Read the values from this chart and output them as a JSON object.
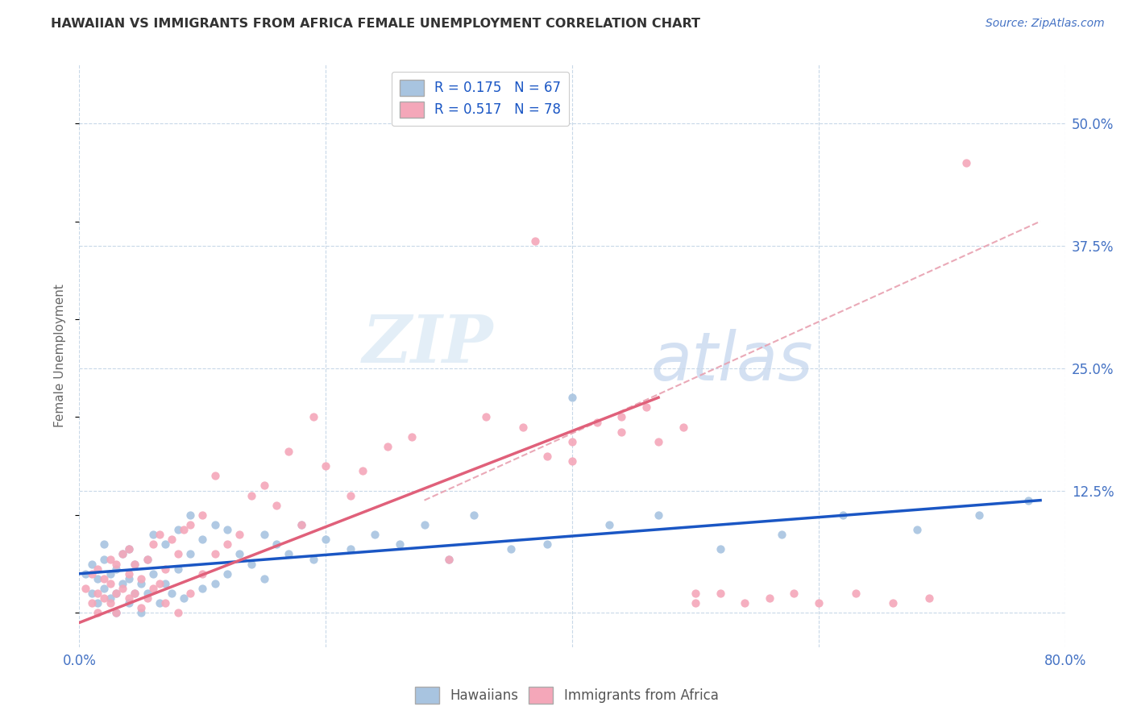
{
  "title": "HAWAIIAN VS IMMIGRANTS FROM AFRICA FEMALE UNEMPLOYMENT CORRELATION CHART",
  "source": "Source: ZipAtlas.com",
  "ylabel": "Female Unemployment",
  "xlim": [
    0.0,
    0.8
  ],
  "ylim": [
    -0.035,
    0.56
  ],
  "hawaiian_color": "#a8c4e0",
  "african_color": "#f4a7b9",
  "hawaiian_line_color": "#1a56c4",
  "african_line_color": "#e0607a",
  "dash_line_color": "#e8a0b0",
  "R_hawaiian": 0.175,
  "N_hawaiian": 67,
  "R_african": 0.517,
  "N_african": 78,
  "watermark_zip": "ZIP",
  "watermark_atlas": "atlas",
  "background_color": "#ffffff",
  "grid_color": "#c8d8e8",
  "ytick_label_color": "#4472c4",
  "title_color": "#333333",
  "source_color": "#4472c4",
  "legend_text_color": "#1a56c4",
  "bottom_legend_color": "#555555",
  "scatter_size": 55,
  "hawaiian_scatter": {
    "x": [
      0.005,
      0.01,
      0.01,
      0.015,
      0.015,
      0.02,
      0.02,
      0.02,
      0.025,
      0.025,
      0.03,
      0.03,
      0.03,
      0.035,
      0.035,
      0.04,
      0.04,
      0.04,
      0.045,
      0.045,
      0.05,
      0.05,
      0.055,
      0.055,
      0.06,
      0.06,
      0.065,
      0.07,
      0.07,
      0.075,
      0.08,
      0.08,
      0.085,
      0.09,
      0.09,
      0.1,
      0.1,
      0.11,
      0.11,
      0.12,
      0.12,
      0.13,
      0.14,
      0.15,
      0.15,
      0.16,
      0.17,
      0.18,
      0.19,
      0.2,
      0.22,
      0.24,
      0.26,
      0.28,
      0.3,
      0.32,
      0.35,
      0.38,
      0.4,
      0.43,
      0.47,
      0.52,
      0.57,
      0.62,
      0.68,
      0.73,
      0.77
    ],
    "y": [
      0.04,
      0.02,
      0.05,
      0.01,
      0.035,
      0.025,
      0.055,
      0.07,
      0.015,
      0.04,
      0.0,
      0.02,
      0.045,
      0.03,
      0.06,
      0.01,
      0.035,
      0.065,
      0.02,
      0.05,
      0.0,
      0.03,
      0.02,
      0.055,
      0.04,
      0.08,
      0.01,
      0.03,
      0.07,
      0.02,
      0.045,
      0.085,
      0.015,
      0.06,
      0.1,
      0.025,
      0.075,
      0.03,
      0.09,
      0.04,
      0.085,
      0.06,
      0.05,
      0.035,
      0.08,
      0.07,
      0.06,
      0.09,
      0.055,
      0.075,
      0.065,
      0.08,
      0.07,
      0.09,
      0.055,
      0.1,
      0.065,
      0.07,
      0.22,
      0.09,
      0.1,
      0.065,
      0.08,
      0.1,
      0.085,
      0.1,
      0.115
    ]
  },
  "african_scatter": {
    "x": [
      0.005,
      0.01,
      0.01,
      0.015,
      0.015,
      0.015,
      0.02,
      0.02,
      0.025,
      0.025,
      0.025,
      0.03,
      0.03,
      0.03,
      0.035,
      0.035,
      0.04,
      0.04,
      0.04,
      0.045,
      0.045,
      0.05,
      0.05,
      0.055,
      0.055,
      0.06,
      0.06,
      0.065,
      0.065,
      0.07,
      0.07,
      0.075,
      0.08,
      0.08,
      0.085,
      0.09,
      0.09,
      0.1,
      0.1,
      0.11,
      0.11,
      0.12,
      0.13,
      0.14,
      0.15,
      0.16,
      0.17,
      0.18,
      0.19,
      0.2,
      0.22,
      0.23,
      0.25,
      0.27,
      0.3,
      0.33,
      0.36,
      0.37,
      0.38,
      0.4,
      0.4,
      0.42,
      0.44,
      0.44,
      0.46,
      0.47,
      0.49,
      0.5,
      0.5,
      0.52,
      0.54,
      0.56,
      0.58,
      0.6,
      0.63,
      0.66,
      0.69,
      0.72
    ],
    "y": [
      0.025,
      0.01,
      0.04,
      0.0,
      0.02,
      0.045,
      0.015,
      0.035,
      0.01,
      0.03,
      0.055,
      0.0,
      0.02,
      0.05,
      0.025,
      0.06,
      0.015,
      0.04,
      0.065,
      0.02,
      0.05,
      0.005,
      0.035,
      0.015,
      0.055,
      0.025,
      0.07,
      0.03,
      0.08,
      0.01,
      0.045,
      0.075,
      0.0,
      0.06,
      0.085,
      0.02,
      0.09,
      0.04,
      0.1,
      0.06,
      0.14,
      0.07,
      0.08,
      0.12,
      0.13,
      0.11,
      0.165,
      0.09,
      0.2,
      0.15,
      0.12,
      0.145,
      0.17,
      0.18,
      0.055,
      0.2,
      0.19,
      0.38,
      0.16,
      0.175,
      0.155,
      0.195,
      0.185,
      0.2,
      0.21,
      0.175,
      0.19,
      0.02,
      0.01,
      0.02,
      0.01,
      0.015,
      0.02,
      0.01,
      0.02,
      0.01,
      0.015,
      0.46
    ]
  },
  "hawaiian_line": {
    "x0": 0.0,
    "x1": 0.78,
    "y0": 0.04,
    "y1": 0.115
  },
  "african_line": {
    "x0": 0.0,
    "x1": 0.47,
    "y0": -0.01,
    "y1": 0.22
  },
  "dash_line": {
    "x0": 0.28,
    "x1": 0.78,
    "y0": 0.115,
    "y1": 0.4
  }
}
